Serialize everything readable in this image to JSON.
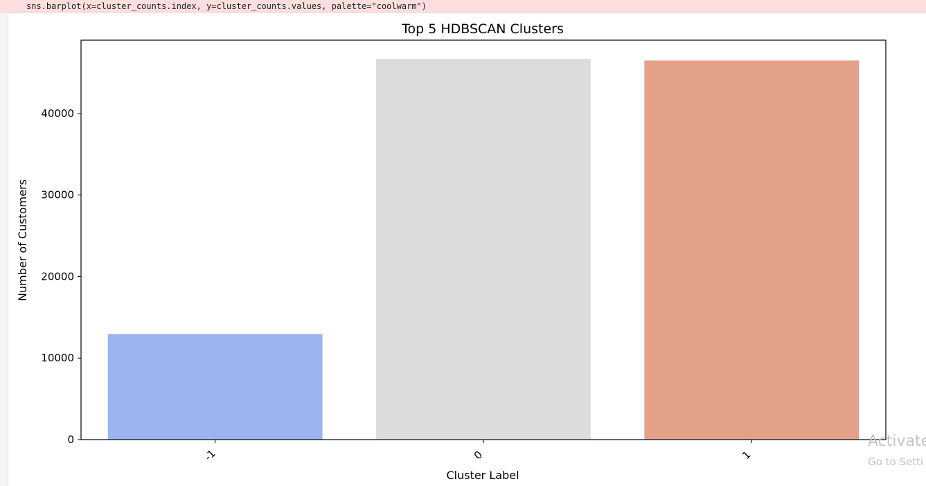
{
  "code_output": {
    "warning_line": "sns.barplot(x=cluster_counts.index, y=cluster_counts.values, palette=\"coolwarm\")"
  },
  "watermark": {
    "line1": "Activate",
    "line2": "Go to Setti"
  },
  "chart_data": {
    "type": "bar",
    "title": "Top 5 HDBSCAN Clusters",
    "xlabel": "Cluster Label",
    "ylabel": "Number of Customers",
    "categories": [
      "-1",
      "0",
      "1"
    ],
    "values": [
      12950,
      46700,
      46500
    ],
    "colors": [
      "#9bb4ef",
      "#dcdcdc",
      "#e4a18a"
    ],
    "ylim": [
      0,
      49000
    ],
    "yticks": [
      0,
      10000,
      20000,
      30000,
      40000
    ],
    "xtick_rotation": -45,
    "grid": false,
    "legend": false
  }
}
